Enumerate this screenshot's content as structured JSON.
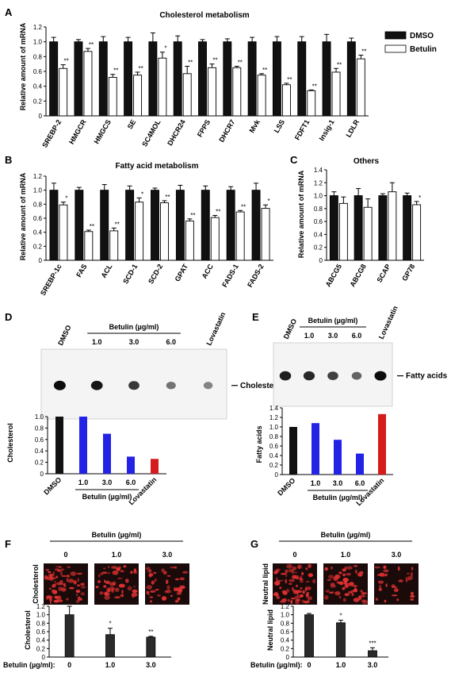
{
  "colors": {
    "dmso": "#111111",
    "betulin": "#ffffff",
    "blue": "#2323e6",
    "red": "#d41c1c",
    "micro_bg": "#1a0a0a",
    "micro_fg": "#e23232",
    "tlc_bg": "#f4f4f4"
  },
  "panels": {
    "A": {
      "letter": "A",
      "legend": {
        "dmso": "DMSO",
        "betulin": "Betulin"
      },
      "chart_data": {
        "type": "bar",
        "title": "Cholesterol metabolism",
        "ylabel": "Relative amount of  mRNA",
        "ylim": [
          0,
          1.2
        ],
        "yticks": [
          "0",
          "0.2",
          "0.4",
          "0.6",
          "0.8",
          "1.0",
          "1.2"
        ],
        "categories": [
          "SREBP-2",
          "HMGCR",
          "HMGCS",
          "SE",
          "SC4MOL",
          "DHCR24",
          "FPPS",
          "DHCR7",
          "Mvk",
          "LSS",
          "FDFT1",
          "Insig-1",
          "LDLR"
        ],
        "series": [
          {
            "name": "DMSO",
            "values": [
              1.0,
              1.0,
              1.0,
              1.0,
              1.0,
              1.0,
              1.0,
              1.0,
              1.0,
              1.0,
              1.0,
              1.0,
              1.0
            ],
            "err": [
              0.06,
              0.03,
              0.07,
              0.06,
              0.12,
              0.08,
              0.03,
              0.04,
              0.06,
              0.07,
              0.07,
              0.1,
              0.05
            ]
          },
          {
            "name": "Betulin",
            "values": [
              0.64,
              0.87,
              0.52,
              0.55,
              0.78,
              0.57,
              0.65,
              0.65,
              0.55,
              0.42,
              0.34,
              0.59,
              0.77
            ],
            "err": [
              0.05,
              0.04,
              0.04,
              0.04,
              0.08,
              0.1,
              0.05,
              0.02,
              0.02,
              0.02,
              0.01,
              0.05,
              0.05
            ]
          }
        ],
        "annotations": [
          "**",
          "**",
          "**",
          "**",
          "*",
          "**",
          "**",
          "**",
          "**",
          "**",
          "**",
          "**",
          "**"
        ]
      }
    },
    "B": {
      "letter": "B",
      "chart_data": {
        "type": "bar",
        "title": "Fatty acid metabolism",
        "ylabel": "Relative amount of  mRNA",
        "ylim": [
          0,
          1.2
        ],
        "yticks": [
          "0",
          "0.2",
          "0.4",
          "0.6",
          "0.8",
          "1.0",
          "1.2"
        ],
        "categories": [
          "SREBP-1c",
          "FAS",
          "ACL",
          "SCD-1",
          "SCD-2",
          "GPAT",
          "ACC",
          "FADS-1",
          "FADS-2"
        ],
        "series": [
          {
            "name": "DMSO",
            "values": [
              1.0,
              1.0,
              1.0,
              1.0,
              1.0,
              1.0,
              1.0,
              1.0,
              1.0
            ],
            "err": [
              0.1,
              0.04,
              0.08,
              0.06,
              0.03,
              0.07,
              0.06,
              0.05,
              0.1
            ]
          },
          {
            "name": "Betulin",
            "values": [
              0.79,
              0.41,
              0.42,
              0.83,
              0.82,
              0.56,
              0.61,
              0.69,
              0.74
            ],
            "err": [
              0.04,
              0.02,
              0.04,
              0.06,
              0.03,
              0.03,
              0.03,
              0.02,
              0.05
            ]
          }
        ],
        "annotations": [
          "*",
          "**",
          "**",
          "*",
          "**",
          "**",
          "**",
          "**",
          "*"
        ]
      }
    },
    "C": {
      "letter": "C",
      "chart_data": {
        "type": "bar",
        "title": "Others",
        "ylabel": "Relative amount of  mRNA",
        "ylim": [
          0,
          1.4
        ],
        "yticks": [
          "0",
          "0.2",
          "0.4",
          "0.6",
          "0.8",
          "1.0",
          "1.2",
          "1.4"
        ],
        "categories": [
          "ABCG5",
          "ABCG8",
          "SCAP",
          "GP78"
        ],
        "series": [
          {
            "name": "DMSO",
            "values": [
              1.0,
              1.0,
              1.0,
              1.0
            ],
            "err": [
              0.06,
              0.11,
              0.03,
              0.04
            ]
          },
          {
            "name": "Betulin",
            "values": [
              0.88,
              0.82,
              1.06,
              0.86
            ],
            "err": [
              0.1,
              0.13,
              0.14,
              0.05
            ]
          }
        ],
        "annotations": [
          "",
          "",
          "",
          "*"
        ]
      }
    },
    "D": {
      "letter": "D",
      "lanes": [
        "DMSO",
        "1.0",
        "3.0",
        "6.0",
        "Lovastatin"
      ],
      "treatment_label": "Betulin (µg/ml)",
      "band_label": "Cholesterol",
      "spot_intensity": [
        1.0,
        0.95,
        0.75,
        0.4,
        0.3
      ],
      "chart_data": {
        "type": "bar",
        "ylabel": "Cholesterol",
        "ylim": [
          0,
          1.0
        ],
        "yticks": [
          "0",
          "0.2",
          "0.4",
          "0.6",
          "0.8",
          "1.0"
        ],
        "categories": [
          "DMSO",
          "1.0",
          "3.0",
          "6.0",
          "Lovastatin"
        ],
        "values": [
          1.0,
          1.0,
          0.7,
          0.3,
          0.26
        ],
        "bar_colors": [
          "#111111",
          "#2323e6",
          "#2323e6",
          "#2323e6",
          "#d41c1c"
        ],
        "xgroup_label": "Betulin (µg/ml)"
      }
    },
    "E": {
      "letter": "E",
      "lanes": [
        "DMSO",
        "1.0",
        "3.0",
        "6.0",
        "Lovastatin"
      ],
      "treatment_label": "Betulin (µg/ml)",
      "band_label": "Fatty acids",
      "spot_intensity": [
        0.9,
        0.85,
        0.7,
        0.5,
        1.0
      ],
      "chart_data": {
        "type": "bar",
        "ylabel": "Fatty acids",
        "ylim": [
          0,
          1.4
        ],
        "yticks": [
          "0",
          "0.2",
          "0.4",
          "0.6",
          "0.8",
          "1.0",
          "1.2",
          "1.4"
        ],
        "categories": [
          "DMSO",
          "1.0",
          "3.0",
          "6.0",
          "Lovastatin"
        ],
        "values": [
          1.0,
          1.08,
          0.73,
          0.44,
          1.27
        ],
        "bar_colors": [
          "#111111",
          "#2323e6",
          "#2323e6",
          "#2323e6",
          "#d41c1c"
        ],
        "xgroup_label": "Betulin (µg/ml)"
      }
    },
    "F": {
      "letter": "F",
      "treatment_label": "Betulin (µg/ml)",
      "doses": [
        "0",
        "1.0",
        "3.0"
      ],
      "image_label": "Cholesterol",
      "x_prefix": "Betulin (µg/ml):",
      "chart_data": {
        "type": "bar",
        "ylabel": "Cholesterol",
        "ylim": [
          0,
          1.2
        ],
        "yticks": [
          "0",
          "0.2",
          "0.4",
          "0.6",
          "0.8",
          "1.0",
          "1.2"
        ],
        "categories": [
          "0",
          "1.0",
          "3.0"
        ],
        "values": [
          1.0,
          0.53,
          0.47
        ],
        "err": [
          0.2,
          0.15,
          0.02
        ],
        "annotations": [
          "",
          "*",
          "**"
        ]
      }
    },
    "G": {
      "letter": "G",
      "treatment_label": "Betulin (µg/ml)",
      "doses": [
        "0",
        "1.0",
        "3.0"
      ],
      "image_label": "Neutral lipid",
      "x_prefix": "Betulin (µg/ml):",
      "chart_data": {
        "type": "bar",
        "ylabel": "Neutral lipid",
        "ylim": [
          0,
          1.2
        ],
        "yticks": [
          "0",
          "0.2",
          "0.4",
          "0.6",
          "0.8",
          "1.0",
          "1.2"
        ],
        "categories": [
          "0",
          "1.0",
          "3.0"
        ],
        "values": [
          1.0,
          0.81,
          0.15
        ],
        "err": [
          0.03,
          0.06,
          0.07
        ],
        "annotations": [
          "",
          "*",
          "***"
        ]
      }
    }
  }
}
